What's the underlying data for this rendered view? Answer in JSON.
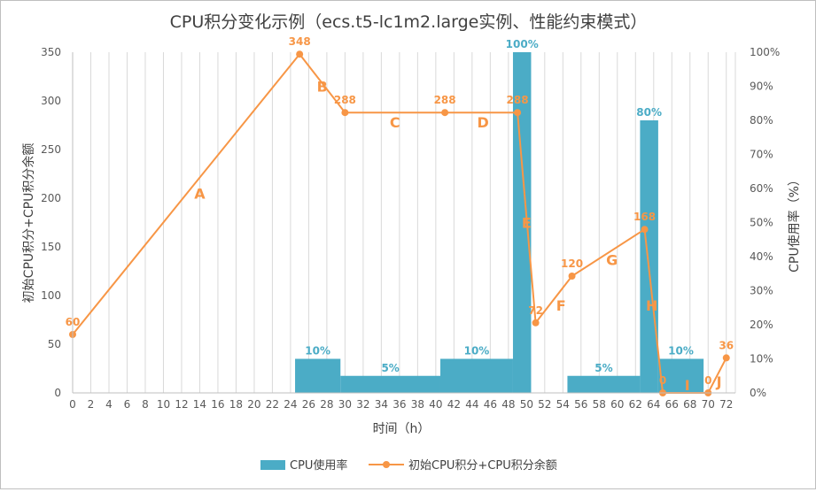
{
  "chart_data": {
    "type": "bar+line",
    "title": "CPU积分变化示例（ecs.t5-lc1m2.large实例、性能约束模式）",
    "xlabel": "时间（h）",
    "ylabel_left": "初始CPU积分+CPU积分余额",
    "ylabel_right": "CPU使用率（%）",
    "x_ticks": [
      "0",
      "2",
      "4",
      "6",
      "8",
      "10",
      "12",
      "14",
      "16",
      "18",
      "20",
      "22",
      "24",
      "26",
      "28",
      "30",
      "32",
      "34",
      "36",
      "38",
      "40",
      "42",
      "44",
      "46",
      "48",
      "50",
      "52",
      "54",
      "56",
      "58",
      "60",
      "62",
      "64",
      "66",
      "68",
      "70",
      "72"
    ],
    "xlim": [
      0,
      73
    ],
    "ylim_left": [
      0,
      350
    ],
    "y_left_ticks": [
      "0",
      "50",
      "100",
      "150",
      "200",
      "250",
      "300",
      "350"
    ],
    "ylim_right": [
      0,
      100
    ],
    "y_right_ticks": [
      "0%",
      "10%",
      "20%",
      "30%",
      "40%",
      "50%",
      "60%",
      "70%",
      "80%",
      "90%",
      "100%"
    ],
    "grid": "vertical",
    "legend_position": "bottom",
    "series": [
      {
        "name": "CPU使用率",
        "kind": "bar",
        "color": "#4bacc6",
        "segments": [
          {
            "x0": 24.5,
            "x1": 29.5,
            "value": 10,
            "label": "10%"
          },
          {
            "x0": 29.5,
            "x1": 40.5,
            "value": 5,
            "label": "5%"
          },
          {
            "x0": 40.5,
            "x1": 48.5,
            "value": 10,
            "label": "10%"
          },
          {
            "x0": 48.5,
            "x1": 50.5,
            "value": 100,
            "label": "100%"
          },
          {
            "x0": 54.5,
            "x1": 62.5,
            "value": 5,
            "label": "5%"
          },
          {
            "x0": 62.5,
            "x1": 64.5,
            "value": 80,
            "label": "80%"
          },
          {
            "x0": 64.5,
            "x1": 69.5,
            "value": 10,
            "label": "10%"
          }
        ]
      },
      {
        "name": "初始CPU积分+CPU积分余额",
        "kind": "line",
        "color": "#f79646",
        "points": [
          {
            "x": 0,
            "y": 60,
            "label": "60"
          },
          {
            "x": 25,
            "y": 348,
            "label": "348"
          },
          {
            "x": 30,
            "y": 288,
            "label": "288"
          },
          {
            "x": 41,
            "y": 288,
            "label": "288"
          },
          {
            "x": 49,
            "y": 288,
            "label": "288"
          },
          {
            "x": 51,
            "y": 72,
            "label": "72"
          },
          {
            "x": 55,
            "y": 120,
            "label": "120"
          },
          {
            "x": 63,
            "y": 168,
            "label": "168"
          },
          {
            "x": 65,
            "y": 0,
            "label": "0"
          },
          {
            "x": 70,
            "y": 0,
            "label": "0"
          },
          {
            "x": 72,
            "y": 36,
            "label": "36"
          }
        ]
      }
    ],
    "annotations": [
      {
        "text": "A",
        "x": 14,
        "y": 205
      },
      {
        "text": "B",
        "x": 27.5,
        "y": 315
      },
      {
        "text": "C",
        "x": 35.5,
        "y": 278
      },
      {
        "text": "D",
        "x": 45.2,
        "y": 278
      },
      {
        "text": "E",
        "x": 50,
        "y": 175
      },
      {
        "text": "F",
        "x": 53.8,
        "y": 90
      },
      {
        "text": "G",
        "x": 59.4,
        "y": 137
      },
      {
        "text": "H",
        "x": 63.8,
        "y": 90
      },
      {
        "text": "I",
        "x": 67.7,
        "y": 8
      },
      {
        "text": "J",
        "x": 71.2,
        "y": 12
      }
    ]
  }
}
